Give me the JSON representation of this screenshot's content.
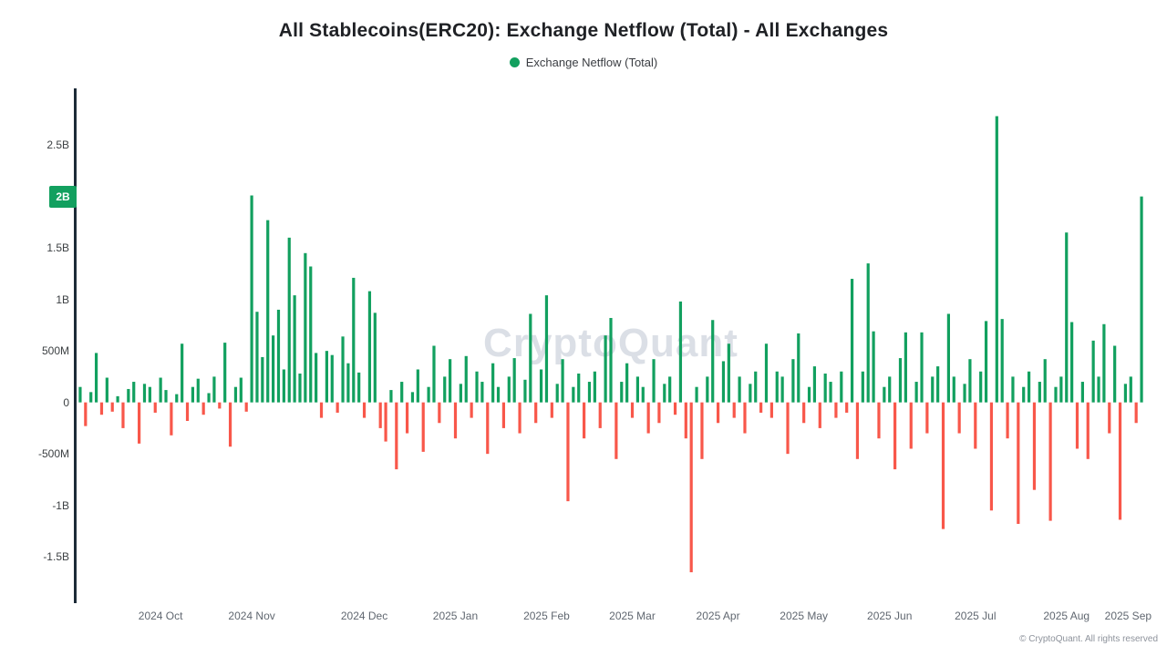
{
  "title": "All Stablecoins(ERC20): Exchange Netflow (Total) - All Exchanges",
  "legend": {
    "label": "Exchange Netflow (Total)",
    "color": "#12a05f"
  },
  "watermark": "CryptoQuant",
  "footer": "© CryptoQuant. All rights reserved",
  "axis_badge": {
    "label": "2B",
    "value": 2000,
    "color": "#12a05f"
  },
  "chart_data": {
    "type": "bar",
    "title": "All Stablecoins(ERC20): Exchange Netflow (Total) - All Exchanges",
    "xlabel": "",
    "ylabel": "",
    "unit": "millions_usd",
    "ylim": [
      -1950,
      3050
    ],
    "grid": false,
    "legend_position": "top",
    "colors": {
      "positive": "#12a05f",
      "negative": "#f8574a"
    },
    "y_ticks": [
      {
        "label": "2.5B",
        "value": 2500
      },
      {
        "label": "2B",
        "value": 2000
      },
      {
        "label": "1.5B",
        "value": 1500
      },
      {
        "label": "1B",
        "value": 1000
      },
      {
        "label": "500M",
        "value": 500
      },
      {
        "label": "0",
        "value": 0
      },
      {
        "label": "-500M",
        "value": -500
      },
      {
        "label": "-1B",
        "value": -1000
      },
      {
        "label": "-1.5B",
        "value": -1500
      }
    ],
    "x_labels": [
      {
        "label": "2024 Oct",
        "index": 8
      },
      {
        "label": "2024 Nov",
        "index": 25
      },
      {
        "label": "2024 Dec",
        "index": 46
      },
      {
        "label": "2025 Jan",
        "index": 63
      },
      {
        "label": "2025 Feb",
        "index": 80
      },
      {
        "label": "2025 Mar",
        "index": 96
      },
      {
        "label": "2025 Apr",
        "index": 112
      },
      {
        "label": "2025 May",
        "index": 128
      },
      {
        "label": "2025 Jun",
        "index": 144
      },
      {
        "label": "2025 Jul",
        "index": 160
      },
      {
        "label": "2025 Aug",
        "index": 177
      },
      {
        "label": "2025 Sep",
        "index": 193
      }
    ],
    "series": [
      {
        "name": "Exchange Netflow (Total)",
        "values": [
          150,
          -230,
          100,
          480,
          -120,
          240,
          -90,
          60,
          -250,
          130,
          200,
          -400,
          180,
          150,
          -100,
          240,
          120,
          -320,
          80,
          570,
          -180,
          150,
          230,
          -120,
          90,
          250,
          -60,
          580,
          -430,
          150,
          240,
          -90,
          2010,
          880,
          440,
          1770,
          650,
          900,
          320,
          1600,
          1040,
          280,
          1450,
          1320,
          480,
          -150,
          500,
          460,
          -100,
          640,
          380,
          1210,
          290,
          -150,
          1080,
          870,
          -250,
          -380,
          120,
          -650,
          200,
          -300,
          100,
          320,
          -480,
          150,
          550,
          -200,
          250,
          420,
          -350,
          180,
          450,
          -150,
          300,
          200,
          -500,
          380,
          150,
          -250,
          250,
          430,
          -300,
          220,
          860,
          -200,
          320,
          1040,
          -150,
          180,
          420,
          -960,
          150,
          280,
          -350,
          200,
          300,
          -250,
          650,
          820,
          -550,
          200,
          380,
          -150,
          250,
          150,
          -300,
          420,
          -200,
          180,
          250,
          -120,
          980,
          -350,
          -1650,
          150,
          -550,
          250,
          800,
          -200,
          400,
          570,
          -150,
          250,
          -300,
          180,
          300,
          -100,
          570,
          -150,
          300,
          250,
          -500,
          420,
          670,
          -200,
          150,
          350,
          -250,
          280,
          200,
          -150,
          300,
          -100,
          1200,
          -550,
          300,
          1350,
          690,
          -350,
          150,
          250,
          -650,
          430,
          680,
          -450,
          200,
          680,
          -300,
          250,
          350,
          -1230,
          860,
          250,
          -300,
          180,
          420,
          -450,
          300,
          790,
          -1050,
          2780,
          810,
          -350,
          250,
          -1180,
          150,
          300,
          -850,
          200,
          420,
          -1150,
          150,
          250,
          1650,
          780,
          -450,
          200,
          -550,
          600,
          250,
          760,
          -300,
          550,
          -1140,
          180,
          250,
          -200,
          2000
        ]
      }
    ]
  }
}
